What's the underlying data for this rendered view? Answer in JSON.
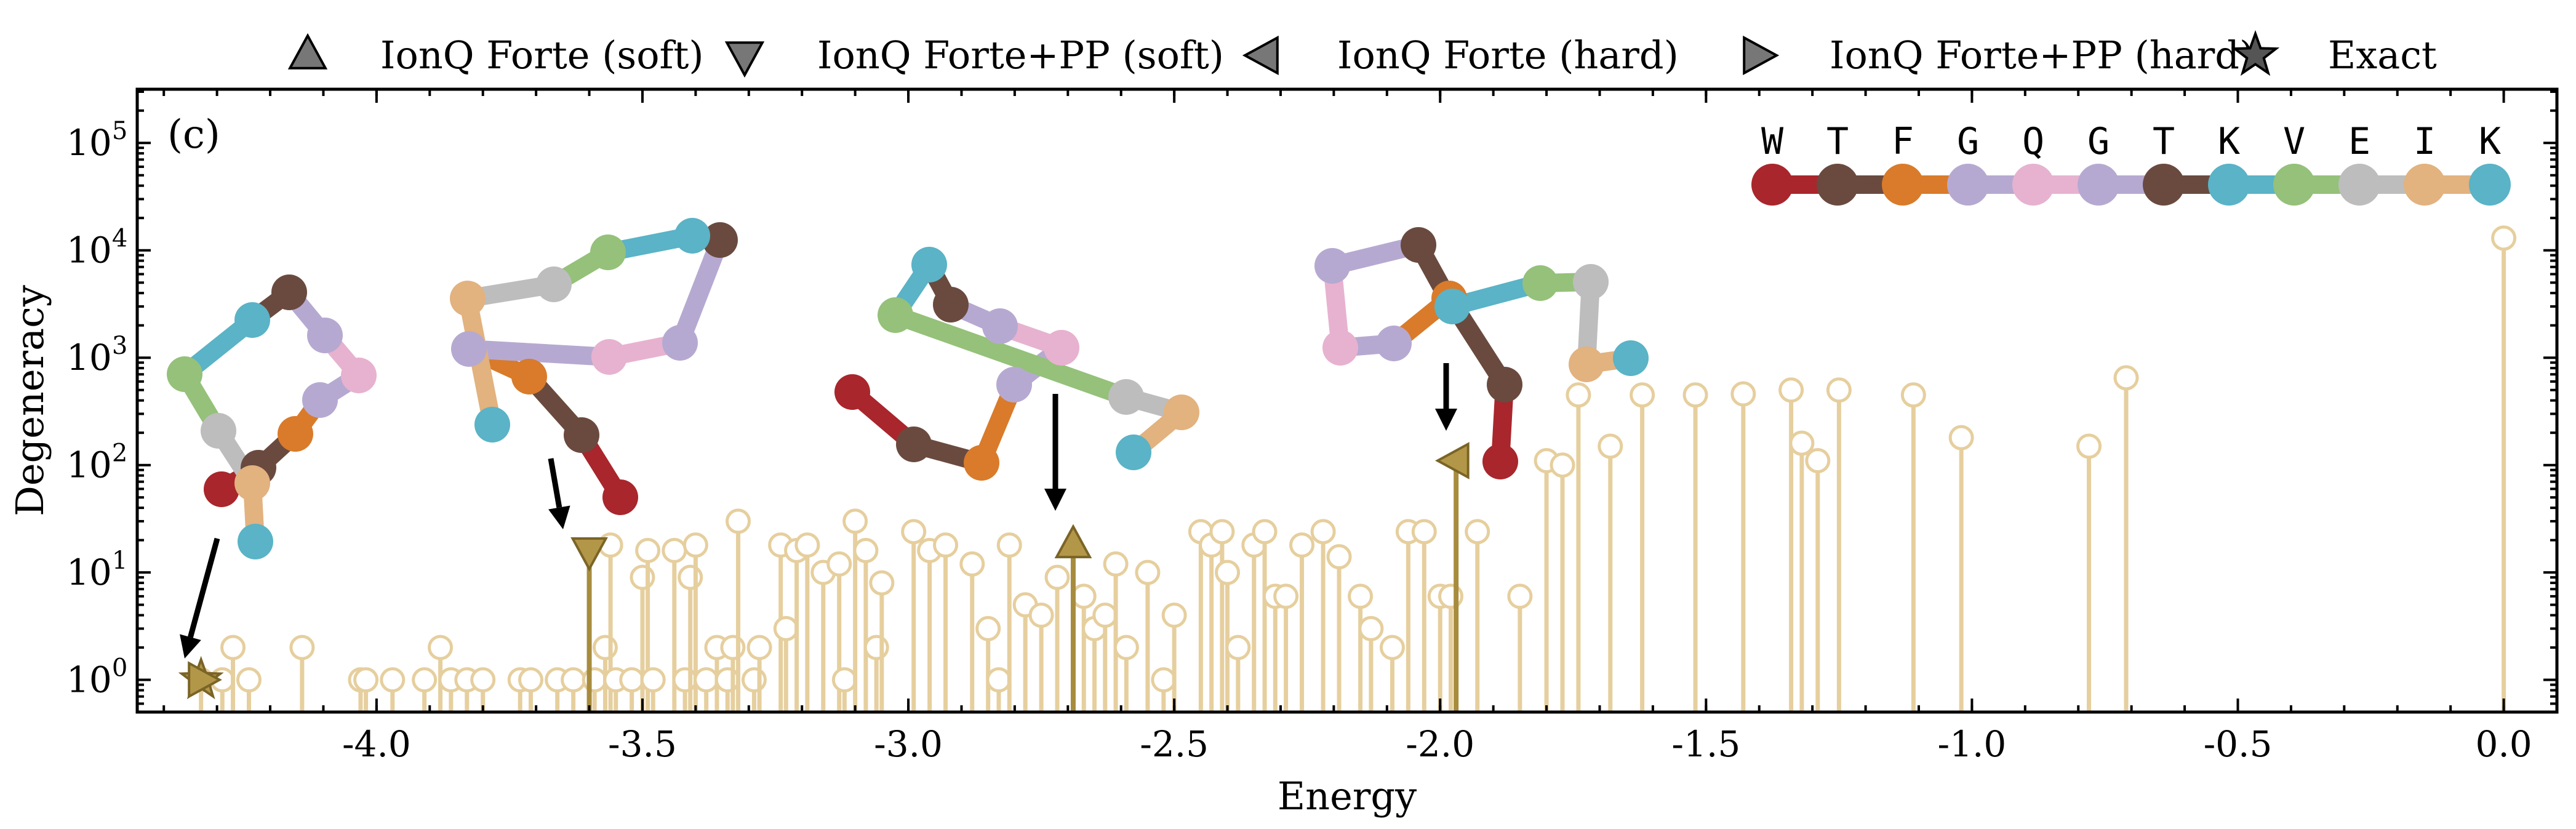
{
  "chart_data": {
    "type": "stem",
    "panel_label": "(c)",
    "xlabel": "Energy",
    "ylabel": "Degeneracy",
    "xlim": [
      -4.45,
      0.1
    ],
    "ylim_log10": [
      -0.3,
      5.5
    ],
    "yscale": "log",
    "grid": false,
    "legend_position": "top",
    "x_ticks": [
      {
        "value": -4.0,
        "label": "-4.0"
      },
      {
        "value": -3.5,
        "label": "-3.5"
      },
      {
        "value": -3.0,
        "label": "-3.0"
      },
      {
        "value": -2.5,
        "label": "-2.5"
      },
      {
        "value": -2.0,
        "label": "-2.0"
      },
      {
        "value": -1.5,
        "label": "-1.5"
      },
      {
        "value": -1.0,
        "label": "-1.0"
      },
      {
        "value": -0.5,
        "label": "-0.5"
      },
      {
        "value": 0.0,
        "label": "0.0"
      }
    ],
    "y_ticks": [
      {
        "exp": 0,
        "base": "10",
        "sup": "0"
      },
      {
        "exp": 1,
        "base": "10",
        "sup": "1"
      },
      {
        "exp": 2,
        "base": "10",
        "sup": "2"
      },
      {
        "exp": 3,
        "base": "10",
        "sup": "3"
      },
      {
        "exp": 4,
        "base": "10",
        "sup": "4"
      },
      {
        "exp": 5,
        "base": "10",
        "sup": "5"
      }
    ],
    "legend": [
      {
        "label": "IonQ Forte (soft)",
        "marker": "triangle-up"
      },
      {
        "label": "IonQ Forte+PP (soft)",
        "marker": "triangle-down"
      },
      {
        "label": "IonQ Forte (hard)",
        "marker": "triangle-left"
      },
      {
        "label": "IonQ Forte+PP (hard)",
        "marker": "triangle-right"
      },
      {
        "label": "Exact",
        "marker": "star"
      }
    ],
    "spectrum": [
      [
        -4.33,
        1
      ],
      [
        -4.29,
        1
      ],
      [
        -4.27,
        2
      ],
      [
        -4.24,
        1
      ],
      [
        -4.14,
        2
      ],
      [
        -4.03,
        1
      ],
      [
        -4.02,
        1
      ],
      [
        -3.97,
        1
      ],
      [
        -3.91,
        1
      ],
      [
        -3.88,
        2
      ],
      [
        -3.86,
        1
      ],
      [
        -3.83,
        1
      ],
      [
        -3.8,
        1
      ],
      [
        -3.73,
        1
      ],
      [
        -3.71,
        1
      ],
      [
        -3.66,
        1
      ],
      [
        -3.63,
        1
      ],
      [
        -3.59,
        1
      ],
      [
        -3.57,
        2
      ],
      [
        -3.56,
        18
      ],
      [
        -3.55,
        1
      ],
      [
        -3.52,
        1
      ],
      [
        -3.5,
        9
      ],
      [
        -3.49,
        16
      ],
      [
        -3.48,
        1
      ],
      [
        -3.44,
        16
      ],
      [
        -3.42,
        1
      ],
      [
        -3.41,
        9
      ],
      [
        -3.4,
        18
      ],
      [
        -3.38,
        1
      ],
      [
        -3.36,
        2
      ],
      [
        -3.34,
        1
      ],
      [
        -3.33,
        2
      ],
      [
        -3.32,
        30
      ],
      [
        -3.29,
        1
      ],
      [
        -3.28,
        2
      ],
      [
        -3.24,
        18
      ],
      [
        -3.23,
        3
      ],
      [
        -3.21,
        16
      ],
      [
        -3.19,
        18
      ],
      [
        -3.16,
        10
      ],
      [
        -3.13,
        12
      ],
      [
        -3.12,
        1
      ],
      [
        -3.1,
        30
      ],
      [
        -3.08,
        16
      ],
      [
        -3.06,
        2
      ],
      [
        -3.05,
        8
      ],
      [
        -2.99,
        24
      ],
      [
        -2.96,
        16
      ],
      [
        -2.93,
        18
      ],
      [
        -2.88,
        12
      ],
      [
        -2.85,
        3
      ],
      [
        -2.83,
        1
      ],
      [
        -2.81,
        18
      ],
      [
        -2.78,
        5
      ],
      [
        -2.75,
        4
      ],
      [
        -2.72,
        9
      ],
      [
        -2.67,
        6
      ],
      [
        -2.65,
        3
      ],
      [
        -2.63,
        4
      ],
      [
        -2.61,
        12
      ],
      [
        -2.59,
        2
      ],
      [
        -2.55,
        10
      ],
      [
        -2.52,
        1
      ],
      [
        -2.5,
        4
      ],
      [
        -2.45,
        24
      ],
      [
        -2.43,
        18
      ],
      [
        -2.41,
        24
      ],
      [
        -2.4,
        10
      ],
      [
        -2.38,
        2
      ],
      [
        -2.35,
        18
      ],
      [
        -2.33,
        24
      ],
      [
        -2.31,
        6
      ],
      [
        -2.29,
        6
      ],
      [
        -2.26,
        18
      ],
      [
        -2.22,
        24
      ],
      [
        -2.19,
        14
      ],
      [
        -2.15,
        6
      ],
      [
        -2.13,
        3
      ],
      [
        -2.09,
        2
      ],
      [
        -2.06,
        24
      ],
      [
        -2.03,
        24
      ],
      [
        -2.0,
        6
      ],
      [
        -1.98,
        6
      ],
      [
        -1.93,
        24
      ],
      [
        -1.85,
        6
      ],
      [
        -1.8,
        110
      ],
      [
        -1.77,
        100
      ],
      [
        -1.74,
        450
      ],
      [
        -1.68,
        150
      ],
      [
        -1.62,
        450
      ],
      [
        -1.52,
        450
      ],
      [
        -1.43,
        460
      ],
      [
        -1.34,
        500
      ],
      [
        -1.32,
        160
      ],
      [
        -1.29,
        110
      ],
      [
        -1.25,
        500
      ],
      [
        -1.11,
        450
      ],
      [
        -1.02,
        180
      ],
      [
        -0.78,
        150
      ],
      [
        -0.71,
        650
      ],
      [
        0.0,
        13000
      ]
    ],
    "hardware_results": [
      {
        "series": "Exact",
        "energy": -4.33,
        "degeneracy": 1
      },
      {
        "series": "IonQ Forte+PP (hard)",
        "energy": -4.33,
        "degeneracy": 1
      },
      {
        "series": "IonQ Forte+PP (soft)",
        "energy": -3.6,
        "degeneracy": 16
      },
      {
        "series": "IonQ Forte (soft)",
        "energy": -2.69,
        "degeneracy": 18
      },
      {
        "series": "IonQ Forte (hard)",
        "energy": -1.97,
        "degeneracy": 110
      }
    ],
    "sequence": [
      "W",
      "T",
      "F",
      "G",
      "Q",
      "G",
      "T",
      "K",
      "V",
      "E",
      "I",
      "K"
    ],
    "residue_colors": [
      "#a9262c",
      "#6a4a3f",
      "#d97b2a",
      "#b6a9d1",
      "#e7b2cf",
      "#b6a9d1",
      "#6a4a3f",
      "#5ab3c6",
      "#95c17a",
      "#bdbdbd",
      "#e2b27f",
      "#5ab3c6"
    ],
    "marker_color": "#b39748"
  }
}
